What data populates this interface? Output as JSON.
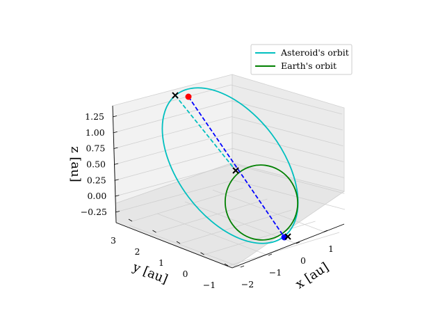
{
  "chart_data": {
    "type": "line3d",
    "title": "",
    "xlabel": "x [au]",
    "ylabel": "y [au]",
    "zlabel": "z [au]",
    "xlim": [
      -2,
      2
    ],
    "ylim": [
      -1,
      3
    ],
    "zlim": [
      -0.4,
      1.4
    ],
    "x_ticks": [
      "−2",
      "−1",
      "0",
      "1"
    ],
    "y_ticks": [
      "−1",
      "0",
      "1",
      "2",
      "3"
    ],
    "z_ticks": [
      "−0.25",
      "0.00",
      "0.25",
      "0.50",
      "0.75",
      "1.00",
      "1.25"
    ],
    "grid": true,
    "legend_position": "upper right",
    "series": [
      {
        "name": "Asteroid's orbit",
        "color": "#00bfbf",
        "style": "solid"
      },
      {
        "name": "Earth's orbit",
        "color": "#008000",
        "style": "solid"
      }
    ],
    "points": [
      {
        "color": "#ff0000",
        "marker": "circle"
      },
      {
        "color": "#0000ff",
        "marker": "circle"
      },
      {
        "color": "#000000",
        "marker": "x"
      },
      {
        "color": "#000000",
        "marker": "x"
      },
      {
        "color": "#000000",
        "marker": "x"
      }
    ],
    "connecting_line": {
      "color": "#0000ff",
      "style": "dashed"
    }
  }
}
